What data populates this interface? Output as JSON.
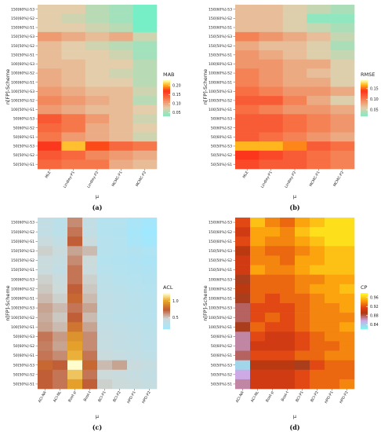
{
  "rows": [
    "150[60%]-S3",
    "150[60%]-S2",
    "150[60%]-S1",
    "150[50%]-S3",
    "150[50%]-S2",
    "150[50%]-S1",
    "100[60%]-S3",
    "100[60%]-S2",
    "100[60%]-S1",
    "100[50%]-S3",
    "100[50%]-S2",
    "100[50%]-S1",
    "50[60%]-S3",
    "50[60%]-S2",
    "50[60%]-S1",
    "50[50%]-S3",
    "50[50%]-S2",
    "50[50%]-S1"
  ],
  "chart_data": [
    {
      "type": "heatmap",
      "caption": "(a)",
      "ylabel": "n[FP]-Scheme",
      "xlabel": "μ",
      "legend_title": "MAB",
      "legend_ticks": [
        0.2,
        0.15,
        0.1,
        0.05
      ],
      "legend_tick_labels": [
        "0.20",
        "0.15",
        "0.10",
        "0.05"
      ],
      "colorscale": "heat",
      "vmin": 0.03,
      "vmax": 0.23,
      "categories": [
        "MLE",
        "Lindley-P1",
        "Lindley-P2",
        "MCMC-P1",
        "MCMC-P2"
      ],
      "values": [
        [
          0.08,
          0.08,
          0.06,
          0.05,
          0.03
        ],
        [
          0.08,
          0.07,
          0.06,
          0.05,
          0.03
        ],
        [
          0.08,
          0.08,
          0.07,
          0.06,
          0.03
        ],
        [
          0.11,
          0.1,
          0.09,
          0.1,
          0.07
        ],
        [
          0.09,
          0.08,
          0.07,
          0.06,
          0.05
        ],
        [
          0.09,
          0.08,
          0.08,
          0.07,
          0.05
        ],
        [
          0.09,
          0.09,
          0.08,
          0.08,
          0.06
        ],
        [
          0.1,
          0.09,
          0.08,
          0.07,
          0.06
        ],
        [
          0.1,
          0.09,
          0.08,
          0.08,
          0.06
        ],
        [
          0.11,
          0.1,
          0.09,
          0.09,
          0.07
        ],
        [
          0.12,
          0.11,
          0.1,
          0.09,
          0.06
        ],
        [
          0.11,
          0.1,
          0.09,
          0.09,
          0.08
        ],
        [
          0.15,
          0.13,
          0.11,
          0.09,
          0.07
        ],
        [
          0.14,
          0.13,
          0.1,
          0.09,
          0.08
        ],
        [
          0.13,
          0.11,
          0.1,
          0.09,
          0.07
        ],
        [
          0.17,
          0.21,
          0.18,
          0.14,
          0.13
        ],
        [
          0.15,
          0.14,
          0.12,
          0.11,
          0.1
        ],
        [
          0.14,
          0.13,
          0.13,
          0.1,
          0.09
        ]
      ]
    },
    {
      "type": "heatmap",
      "caption": "(b)",
      "ylabel": "n[FP]-Scheme",
      "xlabel": "μ",
      "legend_title": "RMSE",
      "legend_ticks": [
        0.15,
        0.1,
        0.05
      ],
      "legend_tick_labels": [
        "0.15",
        "0.10",
        "0.05"
      ],
      "colorscale": "heat",
      "vmin": 0.02,
      "vmax": 0.19,
      "categories": [
        "MLE",
        "Lindley-P1",
        "Lindley-P2",
        "MCMC-P1",
        "MCMC-P2"
      ],
      "values": [
        [
          0.07,
          0.07,
          0.06,
          0.05,
          0.04
        ],
        [
          0.07,
          0.07,
          0.06,
          0.03,
          0.03
        ],
        [
          0.07,
          0.07,
          0.06,
          0.05,
          0.04
        ],
        [
          0.1,
          0.09,
          0.08,
          0.07,
          0.05
        ],
        [
          0.08,
          0.07,
          0.07,
          0.06,
          0.04
        ],
        [
          0.09,
          0.08,
          0.07,
          0.06,
          0.05
        ],
        [
          0.09,
          0.09,
          0.08,
          0.08,
          0.06
        ],
        [
          0.1,
          0.09,
          0.08,
          0.07,
          0.06
        ],
        [
          0.1,
          0.09,
          0.08,
          0.08,
          0.06
        ],
        [
          0.11,
          0.1,
          0.09,
          0.09,
          0.08
        ],
        [
          0.12,
          0.12,
          0.1,
          0.08,
          0.06
        ],
        [
          0.11,
          0.1,
          0.09,
          0.09,
          0.08
        ],
        [
          0.12,
          0.12,
          0.11,
          0.1,
          0.09
        ],
        [
          0.12,
          0.12,
          0.11,
          0.1,
          0.09
        ],
        [
          0.12,
          0.11,
          0.1,
          0.09,
          0.08
        ],
        [
          0.17,
          0.17,
          0.16,
          0.12,
          0.11
        ],
        [
          0.14,
          0.13,
          0.12,
          0.11,
          0.1
        ],
        [
          0.13,
          0.12,
          0.12,
          0.11,
          0.1
        ]
      ]
    },
    {
      "type": "heatmap",
      "caption": "(c)",
      "ylabel": "n[FP]-Scheme",
      "xlabel": "μ",
      "legend_title": "ACL",
      "legend_ticks": [
        1.0,
        0.5
      ],
      "legend_tick_labels": [
        "1.0",
        "0.5"
      ],
      "colorscale": "acl",
      "vmin": 0.15,
      "vmax": 1.25,
      "categories": [
        "ACI-NA",
        "ACI-NL",
        "Boot-p",
        "Boot-t",
        "BCI-P1",
        "BCI-P2",
        "HPD-P1",
        "HPD-P2"
      ],
      "values": [
        [
          0.4,
          0.35,
          0.65,
          0.4,
          0.3,
          0.3,
          0.22,
          0.18
        ],
        [
          0.4,
          0.35,
          0.7,
          0.4,
          0.3,
          0.28,
          0.2,
          0.15
        ],
        [
          0.45,
          0.4,
          0.75,
          0.45,
          0.32,
          0.3,
          0.22,
          0.17
        ],
        [
          0.5,
          0.45,
          0.6,
          0.55,
          0.32,
          0.3,
          0.28,
          0.25
        ],
        [
          0.45,
          0.42,
          0.65,
          0.48,
          0.3,
          0.28,
          0.26,
          0.24
        ],
        [
          0.45,
          0.4,
          0.7,
          0.45,
          0.32,
          0.3,
          0.28,
          0.26
        ],
        [
          0.5,
          0.45,
          0.7,
          0.5,
          0.35,
          0.32,
          0.3,
          0.28
        ],
        [
          0.52,
          0.48,
          0.75,
          0.52,
          0.36,
          0.34,
          0.32,
          0.3
        ],
        [
          0.55,
          0.5,
          0.8,
          0.55,
          0.38,
          0.36,
          0.33,
          0.31
        ],
        [
          0.6,
          0.55,
          0.7,
          0.6,
          0.38,
          0.36,
          0.34,
          0.32
        ],
        [
          0.58,
          0.52,
          0.75,
          0.55,
          0.37,
          0.35,
          0.33,
          0.31
        ],
        [
          0.6,
          0.55,
          0.85,
          0.6,
          0.4,
          0.38,
          0.36,
          0.34
        ],
        [
          0.7,
          0.62,
          0.95,
          0.65,
          0.42,
          0.4,
          0.38,
          0.35
        ],
        [
          0.68,
          0.6,
          1.0,
          0.65,
          0.42,
          0.4,
          0.38,
          0.35
        ],
        [
          0.7,
          0.65,
          1.05,
          0.7,
          0.45,
          0.42,
          0.4,
          0.37
        ],
        [
          0.8,
          0.75,
          1.25,
          0.8,
          0.55,
          0.6,
          0.45,
          0.42
        ],
        [
          0.75,
          0.7,
          1.1,
          0.7,
          0.48,
          0.45,
          0.42,
          0.4
        ],
        [
          0.75,
          0.7,
          1.0,
          0.75,
          0.5,
          0.48,
          0.45,
          0.42
        ]
      ]
    },
    {
      "type": "heatmap",
      "caption": "(d)",
      "ylabel": "n[FP]-Scheme",
      "xlabel": "μ",
      "legend_title": "CP",
      "legend_ticks": [
        0.96,
        0.92,
        0.88,
        0.84
      ],
      "legend_tick_labels": [
        "0.96",
        "0.92",
        "0.88",
        "0.84"
      ],
      "colorscale": "cp",
      "vmin": 0.82,
      "vmax": 0.98,
      "categories": [
        "ACI-NA",
        "ACI-NL",
        "Boot-p",
        "Boot-t",
        "BCI-P1",
        "BCI-P2",
        "HPD-P1",
        "HPD-P2"
      ],
      "values": [
        [
          0.92,
          0.96,
          0.94,
          0.93,
          0.95,
          0.96,
          0.97,
          0.97
        ],
        [
          0.91,
          0.95,
          0.95,
          0.94,
          0.96,
          0.97,
          0.97,
          0.97
        ],
        [
          0.92,
          0.95,
          0.94,
          0.94,
          0.95,
          0.96,
          0.97,
          0.97
        ],
        [
          0.9,
          0.94,
          0.93,
          0.93,
          0.94,
          0.95,
          0.96,
          0.96
        ],
        [
          0.91,
          0.94,
          0.94,
          0.93,
          0.95,
          0.95,
          0.96,
          0.96
        ],
        [
          0.91,
          0.95,
          0.94,
          0.94,
          0.95,
          0.96,
          0.96,
          0.96
        ],
        [
          0.89,
          0.93,
          0.93,
          0.93,
          0.94,
          0.94,
          0.95,
          0.95
        ],
        [
          0.9,
          0.93,
          0.93,
          0.93,
          0.94,
          0.95,
          0.95,
          0.96
        ],
        [
          0.89,
          0.93,
          0.92,
          0.93,
          0.93,
          0.94,
          0.95,
          0.95
        ],
        [
          0.88,
          0.92,
          0.92,
          0.92,
          0.93,
          0.94,
          0.94,
          0.95
        ],
        [
          0.88,
          0.92,
          0.93,
          0.92,
          0.93,
          0.94,
          0.94,
          0.94
        ],
        [
          0.89,
          0.93,
          0.92,
          0.92,
          0.93,
          0.94,
          0.94,
          0.95
        ],
        [
          0.87,
          0.92,
          0.91,
          0.91,
          0.92,
          0.93,
          0.94,
          0.94
        ],
        [
          0.87,
          0.91,
          0.91,
          0.91,
          0.92,
          0.93,
          0.93,
          0.94
        ],
        [
          0.88,
          0.92,
          0.92,
          0.92,
          0.93,
          0.93,
          0.94,
          0.94
        ],
        [
          0.84,
          0.9,
          0.9,
          0.9,
          0.89,
          0.92,
          0.93,
          0.93
        ],
        [
          0.86,
          0.91,
          0.91,
          0.91,
          0.92,
          0.93,
          0.93,
          0.93
        ],
        [
          0.87,
          0.91,
          0.91,
          0.91,
          0.92,
          0.93,
          0.93,
          0.94
        ]
      ]
    }
  ]
}
